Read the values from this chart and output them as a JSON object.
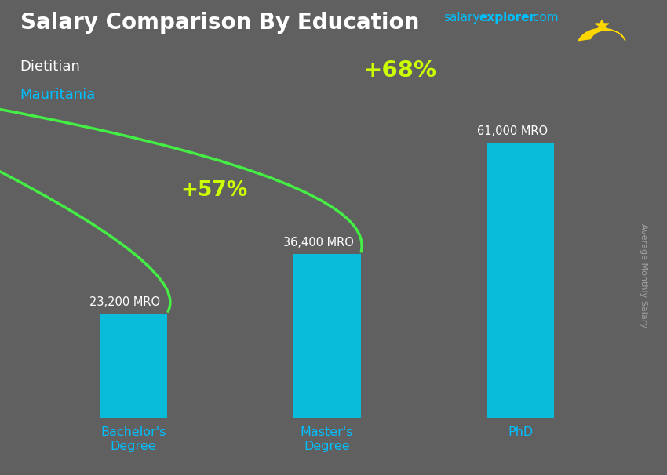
{
  "title_bold": "Salary Comparison By Education",
  "subtitle1": "Dietitian",
  "subtitle2": "Mauritania",
  "ylabel": "Average Monthly Salary",
  "categories": [
    "Bachelor's\nDegree",
    "Master's\nDegree",
    "PhD"
  ],
  "values": [
    23200,
    36400,
    61000
  ],
  "value_labels": [
    "23,200 MRO",
    "36,400 MRO",
    "61,000 MRO"
  ],
  "pct_labels": [
    "+57%",
    "+68%"
  ],
  "bar_color": "#00C8E8",
  "arrow_color": "#44EE44",
  "pct_color": "#CCFF00",
  "title_color": "#FFFFFF",
  "subtitle1_color": "#FFFFFF",
  "subtitle2_color": "#00BFFF",
  "watermark_salary": "salary",
  "watermark_explorer": "explorer",
  "watermark_dot_com": ".com",
  "watermark_color_salary": "#00BFFF",
  "watermark_color_explorer": "#00BFFF",
  "watermark_color_dot_com": "#00BFFF",
  "value_label_color": "#FFFFFF",
  "xlabel_color": "#00BFFF",
  "ylabel_color": "#AAAAAA",
  "background_color": "#606060",
  "flag_bg": "#6aaa00",
  "ylim": [
    0,
    80000
  ],
  "bar_width": 0.35
}
